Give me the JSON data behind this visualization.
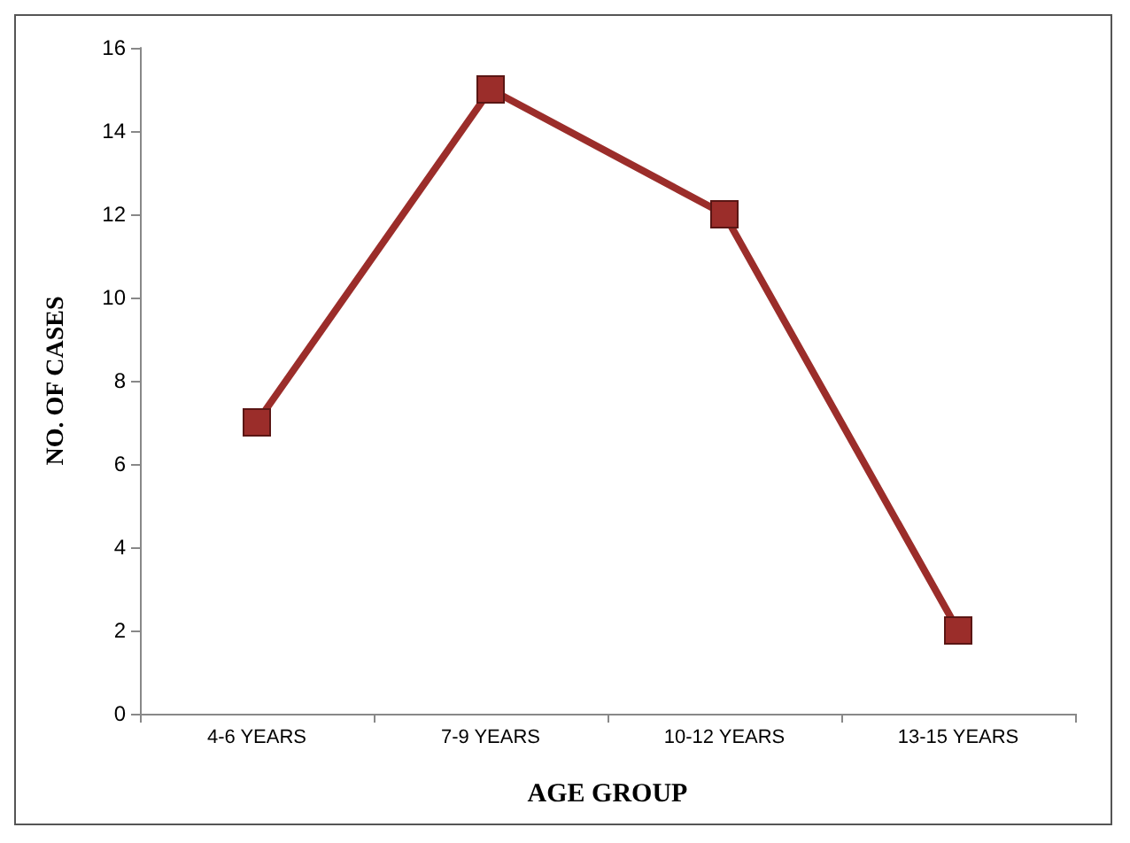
{
  "chart_data": {
    "type": "line",
    "xlabel": "AGE GROUP",
    "ylabel": "NO. OF CASES",
    "categories": [
      "4-6 YEARS",
      "7-9 YEARS",
      "10-12 YEARS",
      "13-15 YEARS"
    ],
    "series": [
      {
        "color": "#9b2d2a",
        "values": [
          7,
          15,
          12,
          2
        ]
      }
    ],
    "ylim": [
      0,
      16
    ],
    "yticks": [
      0,
      2,
      4,
      6,
      8,
      10,
      12,
      14,
      16
    ],
    "grid": false,
    "marker": "square",
    "line_style": "solid"
  }
}
